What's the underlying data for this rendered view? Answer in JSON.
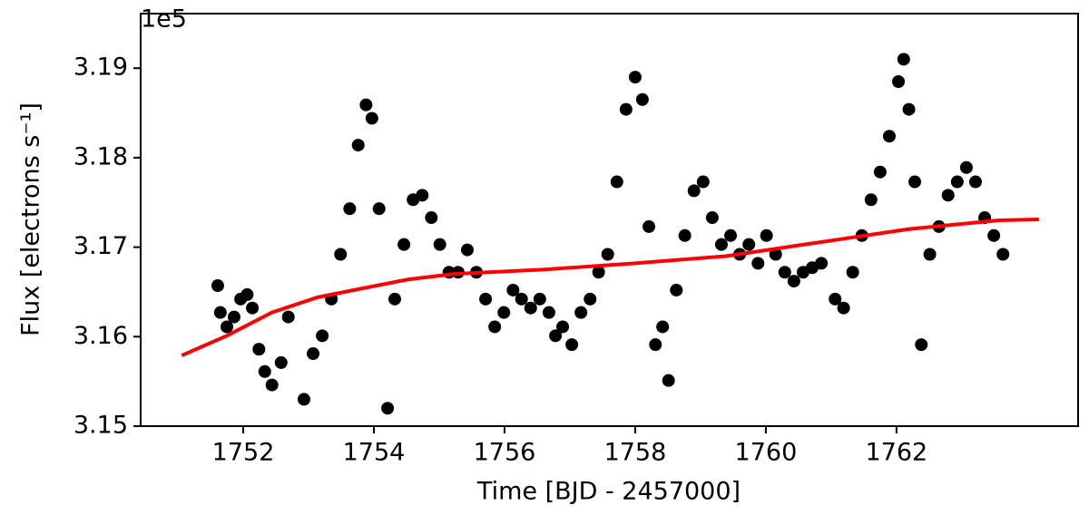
{
  "chart_data": {
    "type": "scatter",
    "x_label": "Time [BJD - 2457000]",
    "y_label": "Flux [electrons s⁻¹]",
    "y_offset_label": "1e5",
    "xlim": [
      1750.43,
      1764.78
    ],
    "ylim": [
      3.15,
      3.1961
    ],
    "xticks": [
      1752,
      1754,
      1756,
      1758,
      1760,
      1762
    ],
    "yticks": [
      3.15,
      3.16,
      3.17,
      3.18,
      3.19
    ],
    "grid": false,
    "series": [
      {
        "mode": "markers",
        "color": "#000000",
        "x": [
          1751.61,
          1751.65,
          1751.75,
          1751.86,
          1751.96,
          1752.06,
          1752.14,
          1752.24,
          1752.33,
          1752.44,
          1752.58,
          1752.69,
          1752.93,
          1753.07,
          1753.21,
          1753.35,
          1753.49,
          1753.63,
          1753.76,
          1753.88,
          1753.97,
          1754.08,
          1754.21,
          1754.32,
          1754.46,
          1754.6,
          1754.74,
          1754.88,
          1755.01,
          1755.15,
          1755.29,
          1755.43,
          1755.57,
          1755.71,
          1755.85,
          1755.99,
          1756.13,
          1756.26,
          1756.4,
          1756.54,
          1756.68,
          1756.78,
          1756.89,
          1757.03,
          1757.17,
          1757.31,
          1757.44,
          1757.58,
          1757.72,
          1757.86,
          1758.0,
          1758.11,
          1758.21,
          1758.31,
          1758.42,
          1758.51,
          1758.63,
          1758.76,
          1758.9,
          1759.04,
          1759.18,
          1759.32,
          1759.46,
          1759.6,
          1759.74,
          1759.88,
          1760.01,
          1760.15,
          1760.29,
          1760.43,
          1760.57,
          1760.71,
          1760.85,
          1761.06,
          1761.19,
          1761.33,
          1761.47,
          1761.61,
          1761.75,
          1761.89,
          1762.03,
          1762.11,
          1762.19,
          1762.28,
          1762.38,
          1762.51,
          1762.65,
          1762.79,
          1762.93,
          1763.07,
          1763.21,
          1763.35,
          1763.49,
          1763.63
        ],
        "values": [
          3.1657,
          3.1627,
          3.1611,
          3.1622,
          3.1642,
          3.1647,
          3.1632,
          3.1586,
          3.1561,
          3.1546,
          3.1571,
          3.1622,
          3.153,
          3.1581,
          3.1601,
          3.1642,
          3.1692,
          3.1743,
          3.1814,
          3.1859,
          3.1844,
          3.1743,
          3.152,
          3.1642,
          3.1703,
          3.1753,
          3.1758,
          3.1733,
          3.1703,
          3.1672,
          3.1672,
          3.1697,
          3.1672,
          3.1642,
          3.1611,
          3.1627,
          3.1652,
          3.1642,
          3.1632,
          3.1642,
          3.1627,
          3.1601,
          3.1611,
          3.1591,
          3.1627,
          3.1642,
          3.1672,
          3.1692,
          3.1773,
          3.1854,
          3.189,
          3.1865,
          3.1723,
          3.1591,
          3.1611,
          3.1551,
          3.1652,
          3.1713,
          3.1763,
          3.1773,
          3.1733,
          3.1703,
          3.1713,
          3.1692,
          3.1703,
          3.1682,
          3.1713,
          3.1692,
          3.1672,
          3.1662,
          3.1672,
          3.1677,
          3.1682,
          3.1642,
          3.1632,
          3.1672,
          3.1713,
          3.1753,
          3.1784,
          3.1824,
          3.1885,
          3.191,
          3.1854,
          3.1773,
          3.1591,
          3.1692,
          3.1723,
          3.1758,
          3.1773,
          3.1789,
          3.1773,
          3.1733,
          3.1713,
          3.1692
        ]
      },
      {
        "mode": "line",
        "color": "#ff0000",
        "x": [
          1751.06,
          1751.75,
          1752.44,
          1753.14,
          1753.83,
          1754.53,
          1755.22,
          1756.61,
          1758.0,
          1759.39,
          1760.78,
          1762.17,
          1763.56,
          1764.18
        ],
        "values": [
          3.1579,
          3.1601,
          3.1627,
          3.1644,
          3.1654,
          3.1664,
          3.167,
          3.1675,
          3.1682,
          3.169,
          3.1705,
          3.172,
          3.173,
          3.1731
        ]
      }
    ]
  }
}
